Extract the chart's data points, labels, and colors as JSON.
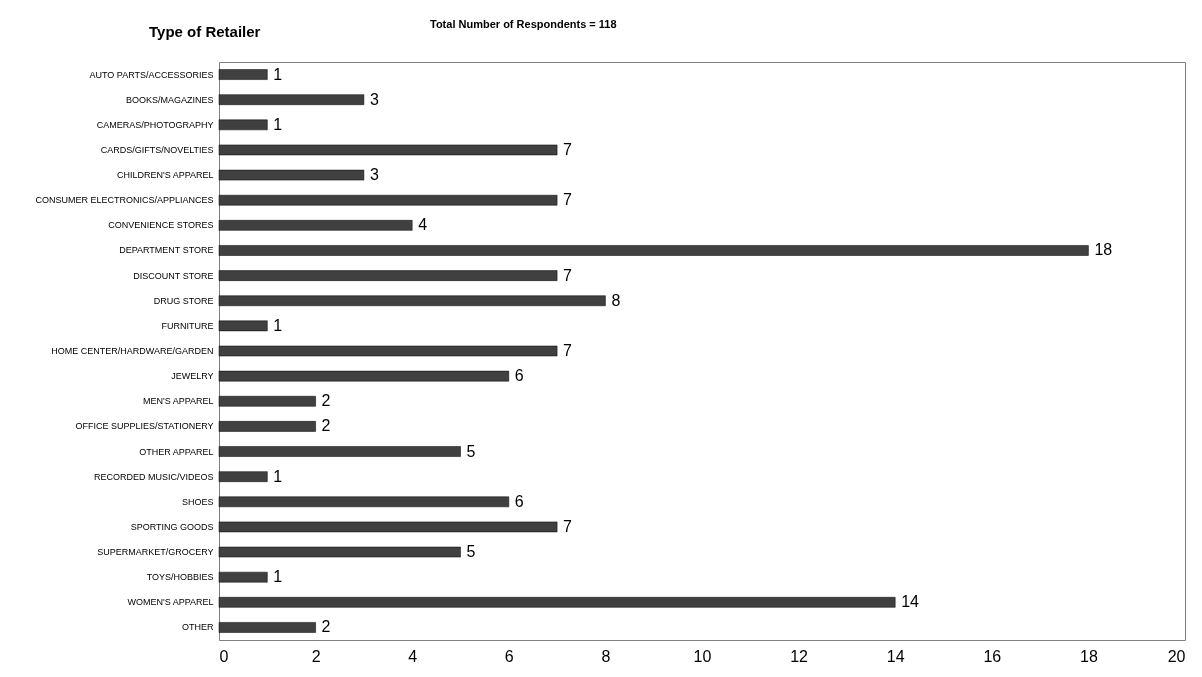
{
  "chart_data": {
    "type": "bar",
    "orientation": "horizontal",
    "title": "Type of Retailer",
    "subtitle": "Total Number of Respondents = 118",
    "categories": [
      "AUTO PARTS/ACCESSORIES",
      "BOOKS/MAGAZINES",
      "CAMERAS/PHOTOGRAPHY",
      "CARDS/GIFTS/NOVELTIES",
      "CHILDREN'S APPAREL",
      "CONSUMER ELECTRONICS/APPLIANCES",
      "CONVENIENCE STORES",
      "DEPARTMENT STORE",
      "DISCOUNT STORE",
      "DRUG STORE",
      "FURNITURE",
      "HOME CENTER/HARDWARE/GARDEN",
      "JEWELRY",
      "MEN'S APPAREL",
      "OFFICE SUPPLIES/STATIONERY",
      "OTHER APPAREL",
      "RECORDED MUSIC/VIDEOS",
      "SHOES",
      "SPORTING GOODS",
      "SUPERMARKET/GROCERY",
      "TOYS/HOBBIES",
      "WOMEN'S APPAREL",
      "OTHER"
    ],
    "values": [
      1,
      3,
      1,
      7,
      3,
      7,
      4,
      18,
      7,
      8,
      1,
      7,
      6,
      2,
      2,
      5,
      1,
      6,
      7,
      5,
      1,
      14,
      2
    ],
    "color": "#404040",
    "xlim": [
      0,
      20
    ],
    "xticks": [
      0,
      2,
      4,
      6,
      8,
      10,
      12,
      14,
      16,
      18,
      20
    ],
    "data_labels": true
  }
}
